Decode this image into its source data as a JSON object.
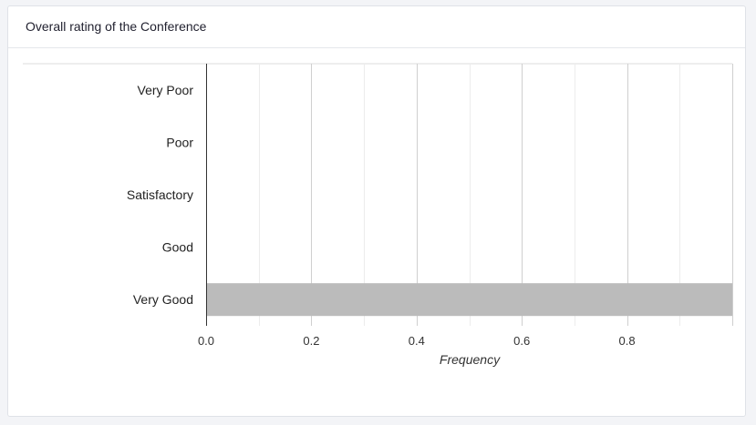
{
  "card": {
    "title": "Overall rating of the Conference"
  },
  "chart_data": {
    "type": "bar",
    "orientation": "horizontal",
    "categories": [
      "Very Poor",
      "Poor",
      "Satisfactory",
      "Good",
      "Very Good"
    ],
    "values": [
      0,
      0,
      0,
      0,
      1.0
    ],
    "xlabel": "Frequency",
    "ylabel": "",
    "xlim": [
      0,
      1.0
    ],
    "xticks": [
      "0.0",
      "0.2",
      "0.4",
      "0.6",
      "0.8"
    ],
    "grid": true,
    "bar_color": "#bbbbbb"
  }
}
